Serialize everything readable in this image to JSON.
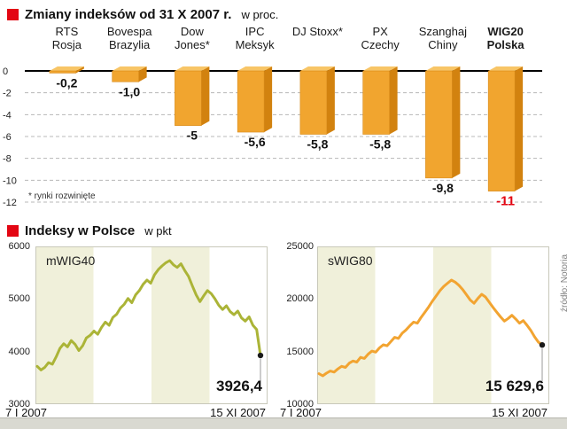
{
  "page": {
    "accent_red": "#e30613",
    "background": "#ffffff",
    "source_note": "źródło: Notoria"
  },
  "sections": {
    "top": {
      "title": "Zmiany indeksów od 31 X 2007 r.",
      "subtitle": "w proc."
    },
    "bottom": {
      "title": "Indeksy w Polsce",
      "subtitle": "w pkt"
    }
  },
  "chart_data": [
    {
      "type": "bar",
      "title": "Zmiany indeksów od 31 X 2007 r.",
      "subtitle": "w proc.",
      "categories": [
        "RTS Rosja",
        "Bovespa Brazylia",
        "Dow Jones*",
        "IPC Meksyk",
        "DJ Stoxx*",
        "PX Czechy",
        "Szanghaj Chiny",
        "WIG20 Polska"
      ],
      "category_lines": [
        [
          "RTS",
          "Rosja"
        ],
        [
          "Bovespa",
          "Brazylia"
        ],
        [
          "Dow",
          "Jones*"
        ],
        [
          "IPC",
          "Meksyk"
        ],
        [
          "DJ Stoxx*",
          ""
        ],
        [
          "PX",
          "Czechy"
        ],
        [
          "Szanghaj",
          "Chiny"
        ],
        [
          "WIG20",
          "Polska"
        ]
      ],
      "values": [
        -0.2,
        -1.0,
        -5,
        -5.6,
        -5.8,
        -5.8,
        -9.8,
        -11
      ],
      "value_labels": [
        "-0,2",
        "-1,0",
        "-5",
        "-5,6",
        "-5,8",
        "-5,8",
        "-9,8",
        "-11"
      ],
      "ylim": [
        -12,
        0
      ],
      "yticks": [
        0,
        -2,
        -4,
        -6,
        -8,
        -10,
        -12
      ],
      "ytick_labels": [
        "0",
        "-2",
        "-4",
        "-6",
        "-8",
        "-10",
        "-12"
      ],
      "footnote": "* rynki rozwinięte",
      "highlight_index": 7,
      "highlight_color": "#e30613",
      "bar_colors": {
        "front": "#f1a52f",
        "side": "#d2820f",
        "top": "#f8c566"
      },
      "grid": true,
      "legend": "none"
    },
    {
      "type": "line",
      "name": "mWIG40",
      "x_start_label": "7 I 2007",
      "x_end_label": "15 XI 2007",
      "ylim": [
        3000,
        6000
      ],
      "ytick_labels": [
        "6000",
        "5000",
        "4000",
        "3000"
      ],
      "end_value": 3926.4,
      "end_value_label": "3926,4",
      "color": "#abb437",
      "band_colors": [
        "#f0f0da",
        "#ffffff"
      ],
      "values": [
        3720,
        3650,
        3700,
        3790,
        3760,
        3900,
        4060,
        4150,
        4090,
        4210,
        4140,
        4020,
        4110,
        4260,
        4310,
        4390,
        4330,
        4460,
        4560,
        4500,
        4650,
        4710,
        4830,
        4900,
        5010,
        4930,
        5080,
        5160,
        5280,
        5360,
        5300,
        5460,
        5560,
        5630,
        5690,
        5730,
        5650,
        5600,
        5670,
        5540,
        5430,
        5250,
        5080,
        4950,
        5060,
        5160,
        5100,
        5000,
        4880,
        4800,
        4870,
        4760,
        4700,
        4770,
        4640,
        4580,
        4660,
        4500,
        4420,
        3926.4
      ]
    },
    {
      "type": "line",
      "name": "sWIG80",
      "x_start_label": "7 I 2007",
      "x_end_label": "15 XI 2007",
      "ylim": [
        10000,
        25000
      ],
      "ytick_labels": [
        "25000",
        "20000",
        "15000",
        "10000"
      ],
      "end_value": 15629.6,
      "end_value_label": "15 629,6",
      "color": "#f2a431",
      "band_colors": [
        "#f0f0da",
        "#ffffff"
      ],
      "values": [
        12900,
        12700,
        12950,
        13150,
        13050,
        13350,
        13600,
        13500,
        13900,
        14100,
        14000,
        14450,
        14350,
        14750,
        15050,
        14950,
        15350,
        15650,
        15550,
        15950,
        16350,
        16250,
        16750,
        17050,
        17450,
        17800,
        17700,
        18250,
        18750,
        19250,
        19800,
        20300,
        20800,
        21200,
        21500,
        21800,
        21600,
        21300,
        20900,
        20400,
        19900,
        19600,
        20050,
        20450,
        20200,
        19700,
        19200,
        18750,
        18300,
        17900,
        18150,
        18450,
        18100,
        17700,
        17950,
        17500,
        17000,
        16400,
        15900,
        15629.6
      ]
    }
  ]
}
